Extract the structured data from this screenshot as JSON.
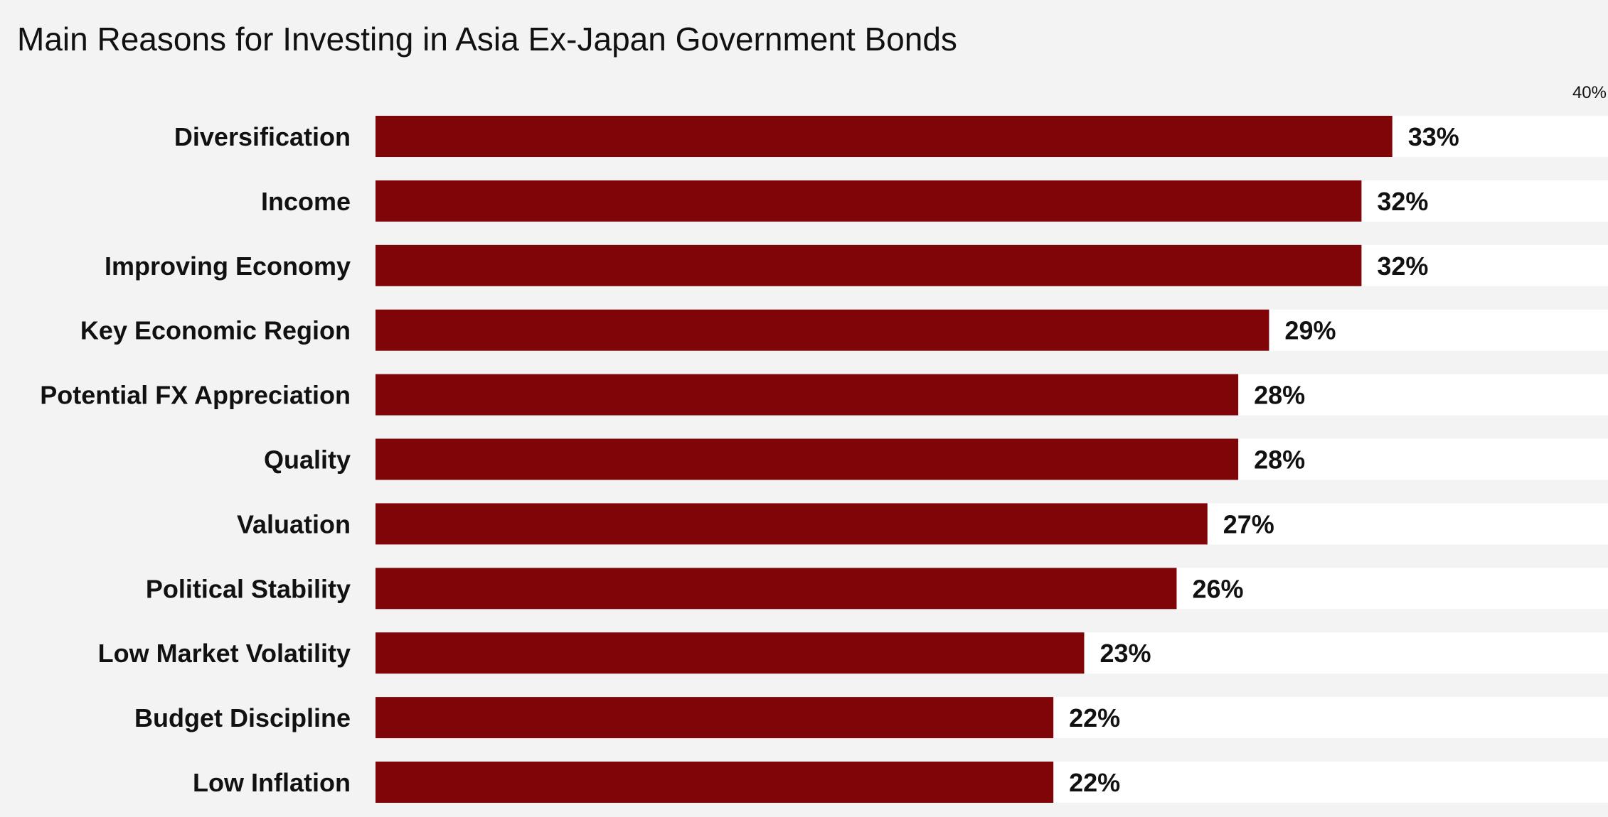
{
  "chart_data": {
    "type": "bar",
    "orientation": "horizontal",
    "title": "Main Reasons for Investing in Asia Ex-Japan Government Bonds",
    "xlabel": "",
    "ylabel": "",
    "categories": [
      "Diversification",
      "Income",
      "Improving Economy",
      "Key Economic Region",
      "Potential FX Appreciation",
      "Quality",
      "Valuation",
      "Political Stability",
      "Low Market Volatility",
      "Budget Discipline",
      "Low Inflation"
    ],
    "values": [
      33,
      32,
      32,
      29,
      28,
      28,
      27,
      26,
      23,
      22,
      22
    ],
    "value_labels": [
      "33%",
      "32%",
      "32%",
      "29%",
      "28%",
      "28%",
      "27%",
      "26%",
      "23%",
      "22%",
      "22%"
    ],
    "xlim": [
      0,
      40
    ],
    "ticks": [
      {
        "value": 40,
        "label": "40%"
      }
    ],
    "grid": false,
    "legend": "none",
    "colors": {
      "bar": "#7f0509",
      "track": "#ffffff",
      "background": "#f3f3f3",
      "text": "#111111"
    }
  }
}
